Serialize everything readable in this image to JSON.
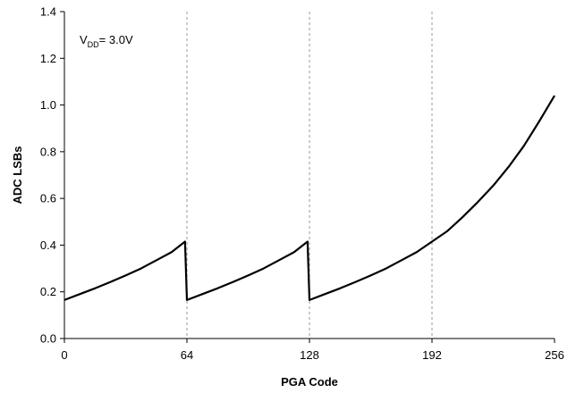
{
  "chart_data": {
    "type": "line",
    "xlabel": "PGA Code",
    "ylabel": "ADC LSBs",
    "xlim": [
      0,
      256
    ],
    "ylim": [
      0,
      1.4
    ],
    "x_ticks": [
      "0",
      "64",
      "128",
      "192",
      "256"
    ],
    "y_ticks": [
      "0.0",
      "0.2",
      "0.4",
      "0.6",
      "0.8",
      "1.0",
      "1.2",
      "1.4"
    ],
    "grid": "vertical dashed",
    "annotation": {
      "main": "V",
      "sub": "DD",
      "rest": "= 3.0V"
    },
    "series": [
      {
        "name": "",
        "color": "#000000",
        "x": [
          0,
          8,
          16,
          24,
          32,
          40,
          48,
          56,
          63,
          64,
          72,
          80,
          88,
          96,
          104,
          112,
          120,
          127,
          128,
          136,
          144,
          152,
          160,
          168,
          176,
          184,
          192,
          200,
          208,
          216,
          224,
          232,
          240,
          248,
          256
        ],
        "y": [
          0.165,
          0.19,
          0.215,
          0.242,
          0.27,
          0.3,
          0.335,
          0.37,
          0.415,
          0.165,
          0.19,
          0.215,
          0.242,
          0.27,
          0.3,
          0.335,
          0.37,
          0.415,
          0.165,
          0.19,
          0.215,
          0.242,
          0.27,
          0.3,
          0.335,
          0.37,
          0.415,
          0.46,
          0.52,
          0.585,
          0.655,
          0.735,
          0.825,
          0.93,
          1.04
        ]
      }
    ]
  }
}
